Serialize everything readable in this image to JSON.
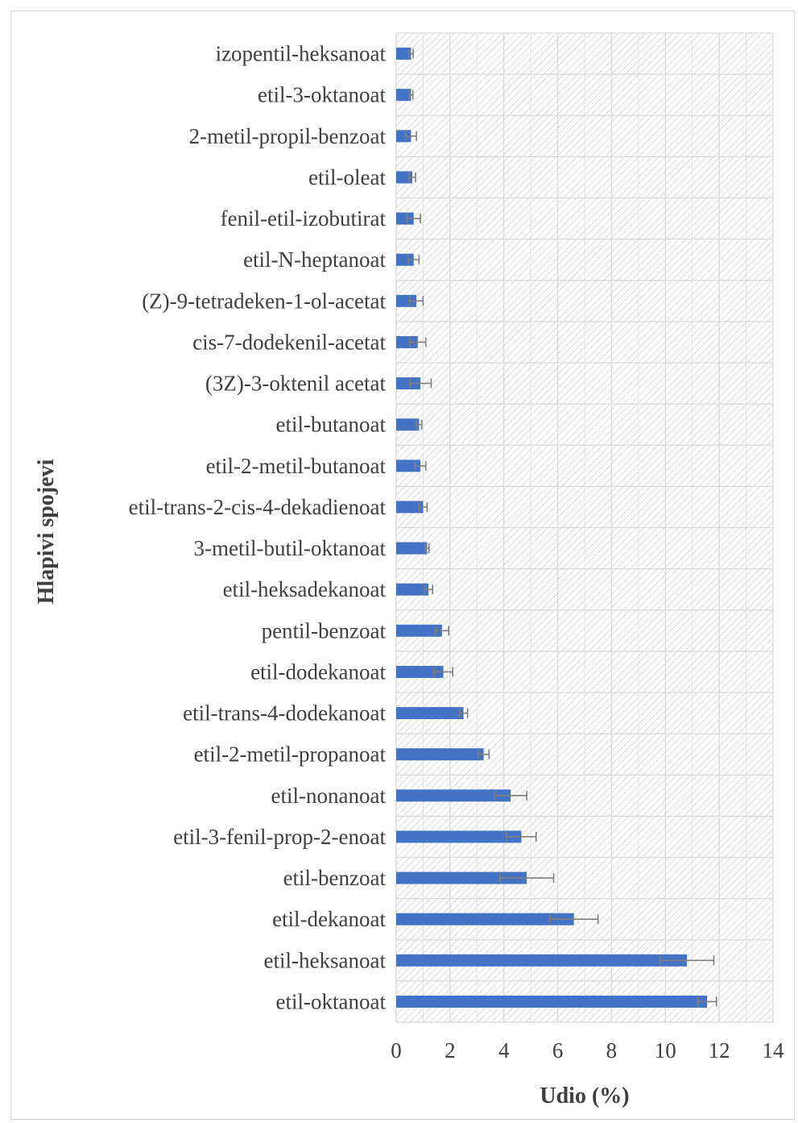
{
  "chart_data": {
    "type": "bar",
    "orientation": "horizontal",
    "xlabel": "Udio (%)",
    "ylabel": "Hlapivi spojevi",
    "xlim": [
      0,
      14
    ],
    "xticks": [
      0,
      2,
      4,
      6,
      8,
      10,
      12,
      14
    ],
    "grid": true,
    "plot_area_pattern": "diagonal-hatch",
    "bar_color": "#4472c4",
    "error_bar_color": "#7f7f7f",
    "categories": [
      "izopentil-heksanoat",
      "etil-3-oktanoat",
      "2-metil-propil-benzoat",
      "etil-oleat",
      "fenil-etil-izobutirat",
      "etil-N-heptanoat",
      "(Z)-9-tetradeken-1-ol-acetat",
      "cis-7-dodekenil-acetat",
      "(3Z)-3-oktenil acetat",
      "etil-butanoat",
      "etil-2-metil-butanoat",
      "etil-trans-2-cis-4-dekadienoat",
      "3-metil-butil-oktanoat",
      "etil-heksadekanoat",
      "pentil-benzoat",
      "etil-dodekanoat",
      "etil-trans-4-dodekanoat",
      "etil-2-metil-propanoat",
      "etil-nonanoat",
      "etil-3-fenil-prop-2-enoat",
      "etil-benzoat",
      "etil-dekanoat",
      "etil-heksanoat",
      "etil-oktanoat"
    ],
    "values": [
      0.55,
      0.55,
      0.55,
      0.6,
      0.65,
      0.65,
      0.75,
      0.8,
      0.9,
      0.85,
      0.9,
      1.0,
      1.15,
      1.2,
      1.7,
      1.75,
      2.5,
      3.25,
      4.25,
      4.65,
      4.85,
      6.6,
      10.8,
      11.55
    ],
    "errors": [
      0.08,
      0.07,
      0.2,
      0.12,
      0.25,
      0.2,
      0.25,
      0.3,
      0.4,
      0.1,
      0.2,
      0.15,
      0.07,
      0.15,
      0.25,
      0.35,
      0.15,
      0.2,
      0.6,
      0.55,
      1.0,
      0.9,
      1.0,
      0.35
    ]
  }
}
